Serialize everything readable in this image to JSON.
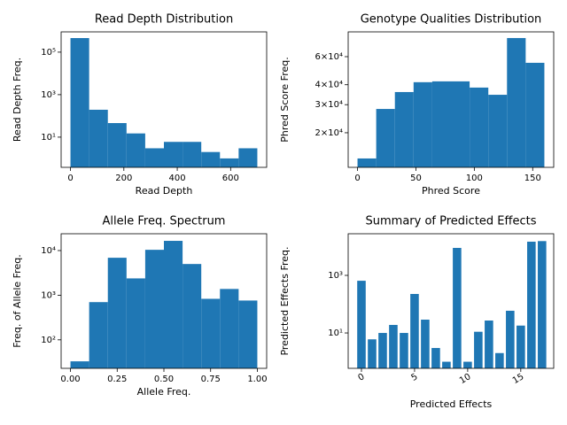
{
  "chart_data": [
    {
      "type": "histogram",
      "title": "Read Depth Distribution",
      "x_label": "Read Depth",
      "y_label": "Read Depth Freq.",
      "bins": [
        0,
        70,
        140,
        210,
        280,
        350,
        420,
        490,
        560,
        630,
        700
      ],
      "values": [
        460000,
        195,
        46,
        15,
        3,
        6,
        6,
        2,
        1,
        3
      ],
      "color": "#1f77b4",
      "log_y": true,
      "xlim": [
        -35,
        735
      ],
      "xticks": [
        0,
        200,
        400,
        600
      ],
      "ylim": [
        0.38,
        900000
      ],
      "yticks": [
        {
          "value": 10,
          "label": "10¹"
        },
        {
          "value": 1000,
          "label": "10³"
        },
        {
          "value": 100000,
          "label": "10⁵"
        }
      ]
    },
    {
      "type": "histogram",
      "title": "Genotype Qualities Distribution",
      "x_label": "Phred Score",
      "y_label": "Phred Score Freq.",
      "bins": [
        0,
        16,
        32,
        48,
        64,
        80,
        96,
        112,
        128,
        144,
        160
      ],
      "values": [
        13800,
        28200,
        36000,
        41500,
        42000,
        42000,
        38400,
        34600,
        78500,
        54900
      ],
      "color": "#1f77b4",
      "log_y": true,
      "xlim": [
        -8,
        168
      ],
      "xticks": [
        0,
        50,
        100,
        150
      ],
      "ylim": [
        12140,
        85800
      ],
      "yticks": [
        {
          "value": 20000,
          "label": "2×10⁴"
        },
        {
          "value": 30000,
          "label": "3×10⁴"
        },
        {
          "value": 40000,
          "label": "4×10⁴"
        },
        {
          "value": 60000,
          "label": "6×10⁴"
        }
      ]
    },
    {
      "type": "histogram",
      "title": "Allele Freq. Spectrum",
      "x_label": "Allele Freq.",
      "y_label": "Freq. of Allele Freq.",
      "bins": [
        0,
        0.1,
        0.2,
        0.3,
        0.4,
        0.5,
        0.6,
        0.7,
        0.8,
        0.9,
        1
      ],
      "values": [
        33,
        700,
        6900,
        2380,
        10400,
        16500,
        5000,
        830,
        1380,
        760
      ],
      "color": "#1f77b4",
      "log_y": true,
      "xlim": [
        -0.05,
        1.05
      ],
      "xticks": [
        {
          "value": 0,
          "label": "0.00"
        },
        {
          "value": 0.25,
          "label": "0.25"
        },
        {
          "value": 0.5,
          "label": "0.50"
        },
        {
          "value": 0.75,
          "label": "0.75"
        },
        {
          "value": 1,
          "label": "1.00"
        }
      ],
      "ylim": [
        23,
        23800
      ],
      "yticks": [
        {
          "value": 100,
          "label": "10²"
        },
        {
          "value": 1000,
          "label": "10³"
        },
        {
          "value": 10000,
          "label": "10⁴"
        }
      ]
    },
    {
      "type": "bar",
      "title": "Summary of Predicted Effects",
      "x_label": "Predicted Effects",
      "y_label": "Predicted Effects Freq.",
      "x": [
        0,
        1,
        2,
        3,
        4,
        5,
        6,
        7,
        8,
        9,
        10,
        11,
        12,
        13,
        14,
        15,
        16,
        17
      ],
      "values": [
        650,
        6,
        10,
        19,
        10,
        226,
        29,
        3,
        1,
        9000,
        1,
        11,
        27,
        2,
        59,
        18,
        14800,
        15500
      ],
      "color": "#1f77b4",
      "log_y": true,
      "bar_width": 0.8,
      "xlim": [
        -1.25,
        18.1
      ],
      "xticks": [
        0,
        5,
        10,
        15
      ],
      "xtick_rotation": 30,
      "ylim": [
        0.59,
        27900
      ],
      "yticks": [
        {
          "value": 10,
          "label": "10¹"
        },
        {
          "value": 1000,
          "label": "10³"
        }
      ]
    }
  ]
}
